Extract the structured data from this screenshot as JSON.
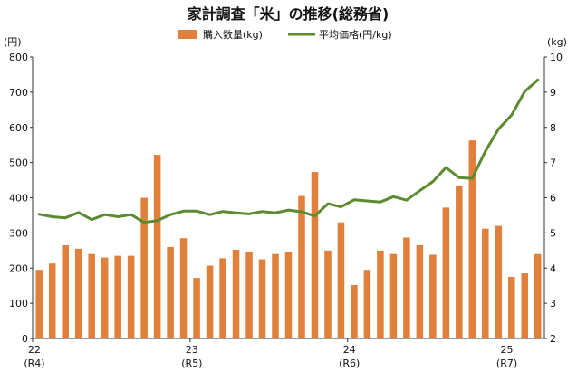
{
  "chart_data": {
    "type": "bar",
    "title": "家計調査「米」の推移(総務省)",
    "legend": {
      "placement": "top-center"
    },
    "y_left": {
      "unit": "(円)",
      "range": [
        0,
        800
      ],
      "ticks": [
        "0",
        "100",
        "200",
        "300",
        "400",
        "500",
        "600",
        "700",
        "800"
      ]
    },
    "y_right": {
      "unit": "(kg)",
      "range": [
        2,
        10
      ],
      "ticks": [
        "2",
        "3",
        "4",
        "5",
        "6",
        "7",
        "8",
        "9",
        "10"
      ]
    },
    "x_ticks": [
      {
        "index": 0,
        "label": "22",
        "sub": "(R4)"
      },
      {
        "index": 12,
        "label": "23",
        "sub": "(R5)"
      },
      {
        "index": 24,
        "label": "24",
        "sub": "(R6)"
      },
      {
        "index": 36,
        "label": "25",
        "sub": "(R7)"
      }
    ],
    "series": [
      {
        "name": "購入数量(kg)",
        "kind": "bar",
        "axis": "left",
        "color": "#e0803a",
        "values": [
          195,
          213,
          265,
          255,
          240,
          230,
          235,
          235,
          400,
          522,
          260,
          285,
          172,
          207,
          228,
          252,
          245,
          225,
          240,
          245,
          405,
          473,
          250,
          330,
          152,
          195,
          250,
          240,
          287,
          265,
          238,
          372,
          435,
          563,
          312,
          320,
          175,
          185,
          240
        ]
      },
      {
        "name": "平均価格(円/kg)",
        "kind": "line",
        "axis": "right",
        "color": "#5c8a30",
        "values": [
          5.53,
          5.46,
          5.43,
          5.58,
          5.38,
          5.52,
          5.46,
          5.52,
          5.3,
          5.35,
          5.52,
          5.62,
          5.62,
          5.52,
          5.61,
          5.57,
          5.54,
          5.61,
          5.57,
          5.65,
          5.6,
          5.48,
          5.83,
          5.74,
          5.94,
          5.91,
          5.88,
          6.03,
          5.93,
          6.2,
          6.46,
          6.86,
          6.57,
          6.55,
          7.32,
          7.95,
          8.35,
          9.02,
          9.35
        ]
      }
    ]
  }
}
